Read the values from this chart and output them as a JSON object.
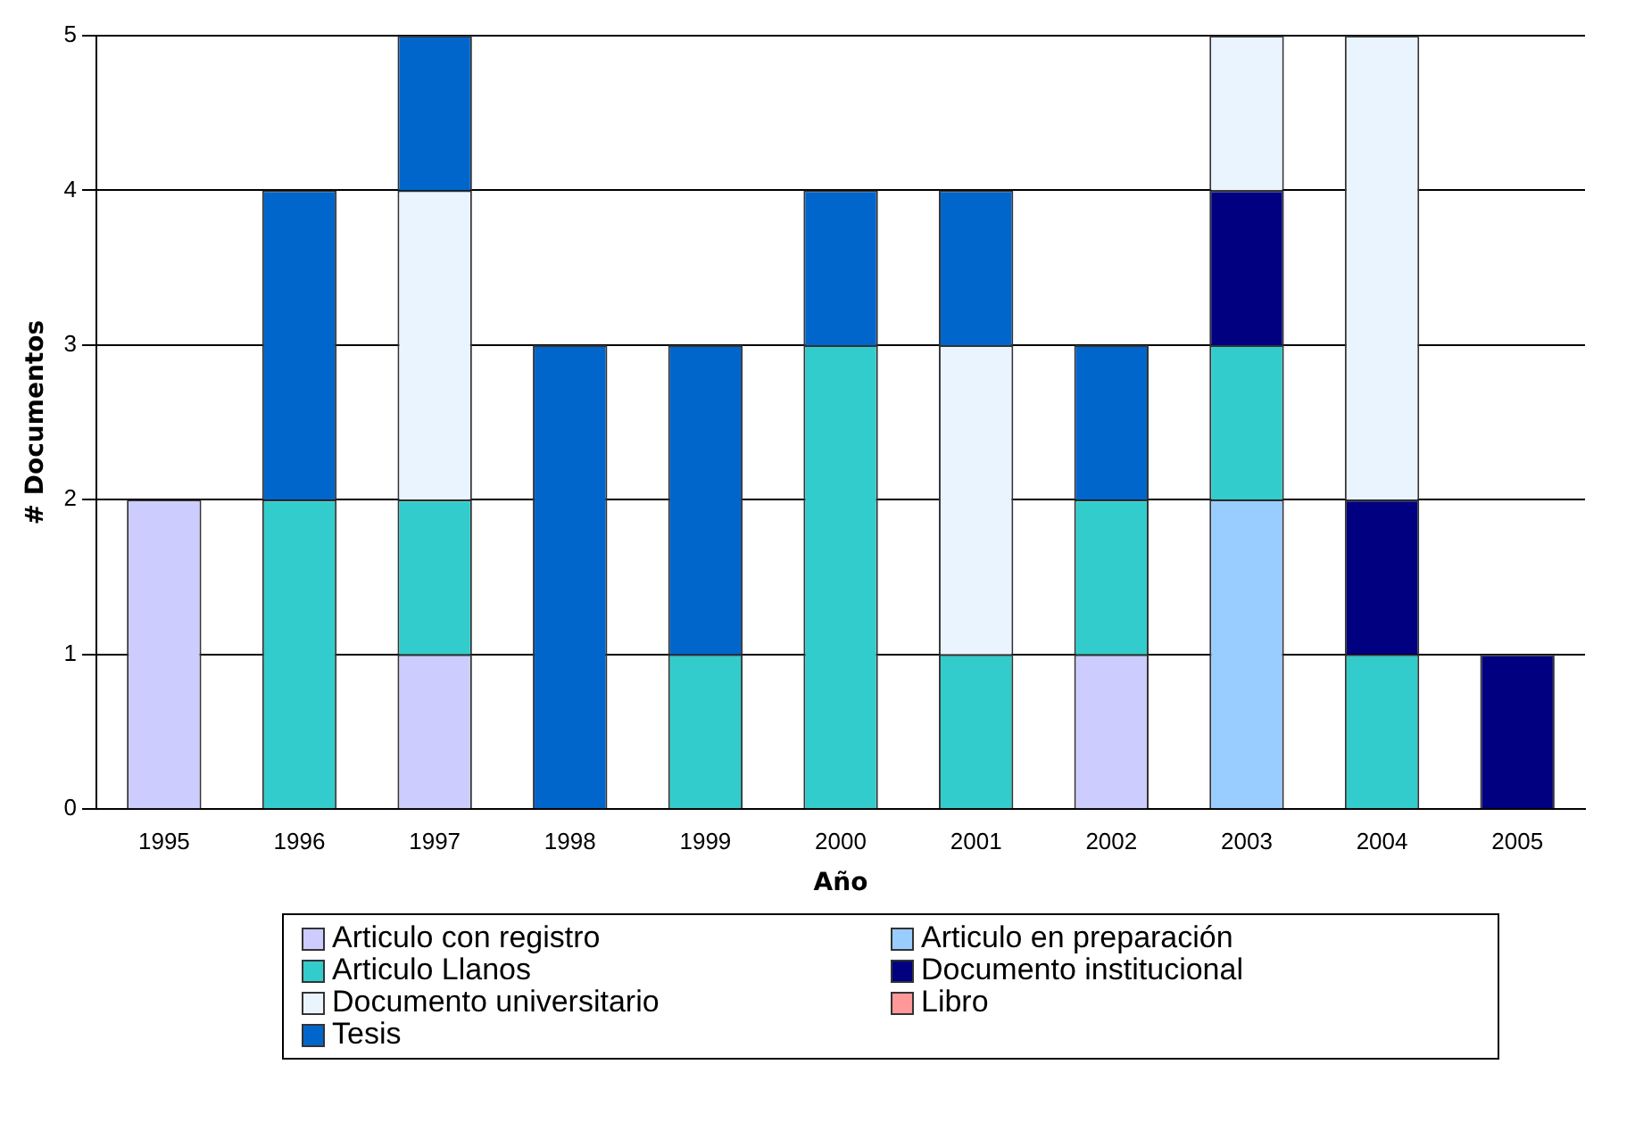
{
  "chart_data": {
    "type": "bar",
    "stacked": true,
    "xlabel": "Año",
    "ylabel": "# Documentos",
    "categories": [
      "1995",
      "1996",
      "1997",
      "1998",
      "1999",
      "2000",
      "2001",
      "2002",
      "2003",
      "2004",
      "2005"
    ],
    "series": [
      {
        "name": "Articulo con registro",
        "color": "#ccccff",
        "values": [
          2,
          0,
          1,
          0,
          0,
          0,
          0,
          1,
          0,
          0,
          0
        ]
      },
      {
        "name": "Articulo en preparación",
        "color": "#99ccff",
        "values": [
          0,
          0,
          0,
          0,
          0,
          0,
          0,
          0,
          2,
          0,
          0
        ]
      },
      {
        "name": "Articulo Llanos",
        "color": "#33cccc",
        "values": [
          0,
          2,
          1,
          0,
          1,
          3,
          1,
          1,
          1,
          1,
          0
        ]
      },
      {
        "name": "Documento institucional",
        "color": "#000080",
        "values": [
          0,
          0,
          0,
          0,
          0,
          0,
          0,
          0,
          1,
          1,
          1
        ]
      },
      {
        "name": "Documento universitario",
        "color": "#eaf4ff",
        "values": [
          0,
          0,
          2,
          0,
          0,
          0,
          2,
          0,
          1,
          3,
          0
        ]
      },
      {
        "name": "Libro",
        "color": "#ff9999",
        "values": [
          0,
          0,
          0,
          0,
          0,
          0,
          0,
          0,
          0,
          0,
          0
        ]
      },
      {
        "name": "Tesis",
        "color": "#0066cc",
        "values": [
          0,
          2,
          1,
          3,
          2,
          1,
          1,
          1,
          0,
          0,
          0
        ]
      }
    ],
    "ylim": [
      0,
      5
    ],
    "yticks": [
      0,
      1,
      2,
      3,
      4,
      5
    ],
    "grid": "y",
    "legend": "bottom"
  }
}
